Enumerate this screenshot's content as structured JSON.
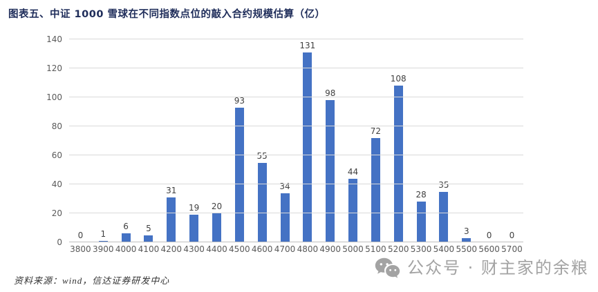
{
  "title": "图表五、中证 1000 雪球在不同指数点位的敲入合约规模估算（亿）",
  "source": "资料来源：wind，信达证券研发中心",
  "watermark": {
    "icon": "wechat-icon",
    "text": "公众号 · 财主家的余粮"
  },
  "colors": {
    "bar": "#4472C4",
    "title": "#1F2D5A",
    "gridline": "#D9D9D9",
    "axis_text": "#595959",
    "value_label": "#404040",
    "watermark": "#A3A3A3"
  },
  "chart_data": {
    "type": "bar",
    "title": "图表五、中证 1000 雪球在不同指数点位的敲入合约规模估算（亿）",
    "categories": [
      "3800",
      "3900",
      "4000",
      "4100",
      "4200",
      "4300",
      "4400",
      "4500",
      "4600",
      "4700",
      "4800",
      "4900",
      "5000",
      "5100",
      "5200",
      "5300",
      "5400",
      "5500",
      "5600",
      "5700"
    ],
    "values": [
      0,
      1,
      6,
      5,
      31,
      19,
      20,
      93,
      55,
      34,
      131,
      98,
      44,
      72,
      108,
      28,
      35,
      3,
      0,
      0
    ],
    "xlabel": "",
    "ylabel": "",
    "ylim": [
      0,
      140
    ],
    "yticks": [
      0,
      20,
      40,
      60,
      80,
      100,
      120,
      140
    ],
    "grid": true,
    "legend": false,
    "data_labels": true,
    "bar_color": "#4472C4"
  }
}
